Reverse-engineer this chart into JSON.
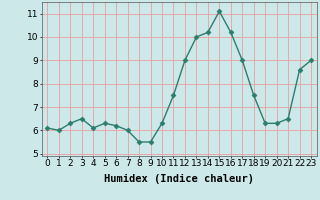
{
  "x": [
    0,
    1,
    2,
    3,
    4,
    5,
    6,
    7,
    8,
    9,
    10,
    11,
    12,
    13,
    14,
    15,
    16,
    17,
    18,
    19,
    20,
    21,
    22,
    23
  ],
  "y": [
    6.1,
    6.0,
    6.3,
    6.5,
    6.1,
    6.3,
    6.2,
    6.0,
    5.5,
    5.5,
    6.3,
    7.5,
    9.0,
    10.0,
    10.2,
    11.1,
    10.2,
    9.0,
    7.5,
    6.3,
    6.3,
    6.5,
    8.6,
    9.0
  ],
  "line_color": "#2d7d6e",
  "marker": "D",
  "marker_size": 2.5,
  "linewidth": 1.0,
  "xlabel": "Humidex (Indice chaleur)",
  "xlim": [
    -0.5,
    23.5
  ],
  "ylim": [
    4.9,
    11.5
  ],
  "yticks": [
    5,
    6,
    7,
    8,
    9,
    10,
    11
  ],
  "xticks": [
    0,
    1,
    2,
    3,
    4,
    5,
    6,
    7,
    8,
    9,
    10,
    11,
    12,
    13,
    14,
    15,
    16,
    17,
    18,
    19,
    20,
    21,
    22,
    23
  ],
  "xtick_labels": [
    "0",
    "1",
    "2",
    "3",
    "4",
    "5",
    "6",
    "7",
    "8",
    "9",
    "10",
    "11",
    "12",
    "13",
    "14",
    "15",
    "16",
    "17",
    "18",
    "19",
    "20",
    "21",
    "22",
    "23"
  ],
  "bg_color": "#cce8e8",
  "grid_color": "#e8a0a0",
  "xlabel_fontsize": 7.5,
  "tick_fontsize": 6.5
}
